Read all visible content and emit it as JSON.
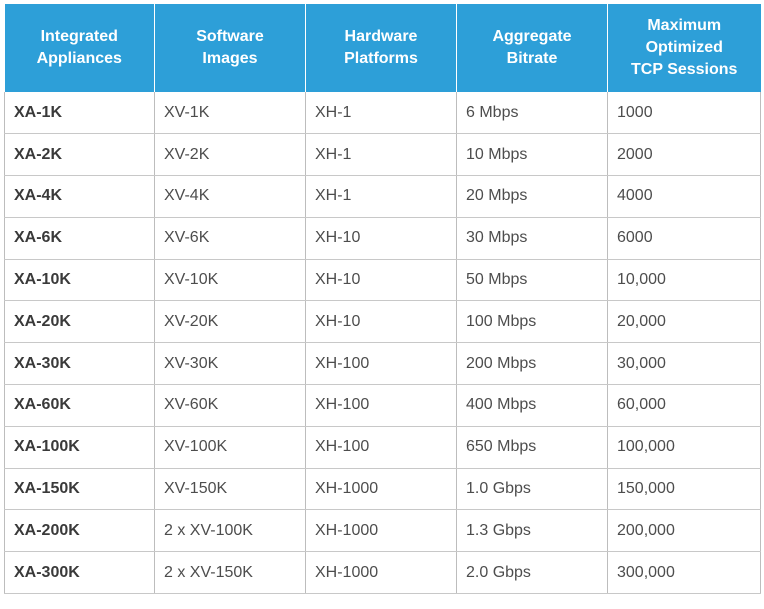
{
  "table": {
    "headers": [
      [
        "Integrated",
        "Appliances"
      ],
      [
        "Software",
        "Images"
      ],
      [
        "Hardware",
        "Platforms"
      ],
      [
        "Aggregate",
        "Bitrate"
      ],
      [
        "Maximum",
        "Optimized",
        "TCP Sessions"
      ]
    ],
    "rows": [
      [
        "XA-1K",
        "XV-1K",
        "XH-1",
        "6 Mbps",
        "1000"
      ],
      [
        "XA-2K",
        "XV-2K",
        "XH-1",
        "10 Mbps",
        "2000"
      ],
      [
        "XA-4K",
        "XV-4K",
        "XH-1",
        "20 Mbps",
        "4000"
      ],
      [
        "XA-6K",
        "XV-6K",
        "XH-10",
        "30 Mbps",
        "6000"
      ],
      [
        "XA-10K",
        "XV-10K",
        "XH-10",
        "50 Mbps",
        "10,000"
      ],
      [
        "XA-20K",
        "XV-20K",
        "XH-10",
        "100 Mbps",
        "20,000"
      ],
      [
        "XA-30K",
        "XV-30K",
        "XH-100",
        "200 Mbps",
        "30,000"
      ],
      [
        "XA-60K",
        "XV-60K",
        "XH-100",
        "400 Mbps",
        "60,000"
      ],
      [
        "XA-100K",
        "XV-100K",
        "XH-100",
        "650 Mbps",
        "100,000"
      ],
      [
        "XA-150K",
        "XV-150K",
        "XH-1000",
        "1.0 Gbps",
        "150,000"
      ],
      [
        "XA-200K",
        "2 x XV-100K",
        "XH-1000",
        "1.3 Gbps",
        "200,000"
      ],
      [
        "XA-300K",
        "2 x XV-150K",
        "XH-1000",
        "2.0 Gbps",
        "300,000"
      ]
    ]
  },
  "colors": {
    "header_bg": "#2d9fd8",
    "header_text": "#ffffff",
    "cell_text": "#4d4d4d",
    "grid_line": "#bdbdbd"
  }
}
